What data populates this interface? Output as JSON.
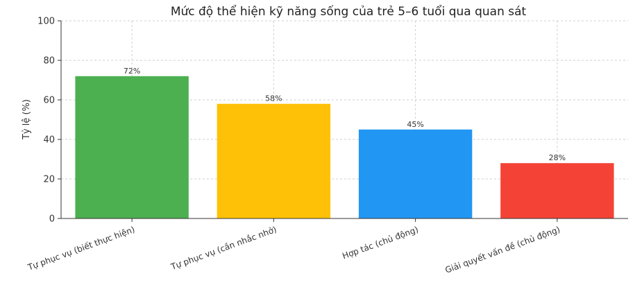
{
  "chart_data": {
    "type": "bar",
    "title": "Mức độ thể hiện kỹ năng sống của trẻ 5–6 tuổi qua quan sát",
    "xlabel": "",
    "ylabel": "Tỷ lệ (%)",
    "ylim": [
      0,
      100
    ],
    "yticks": [
      0,
      20,
      40,
      60,
      80,
      100
    ],
    "grid": true,
    "categories": [
      "Tự phục vụ (biết thực hiện)",
      "Tự phục vụ (cần nhắc nhở)",
      "Hợp tác (chủ động)",
      "Giải quyết vấn đề (chủ động)"
    ],
    "values": [
      72,
      58,
      45,
      28
    ],
    "data_labels": [
      "72%",
      "58%",
      "45%",
      "28%"
    ],
    "colors": [
      "#4caf50",
      "#ffc107",
      "#2196f3",
      "#f44336"
    ]
  }
}
